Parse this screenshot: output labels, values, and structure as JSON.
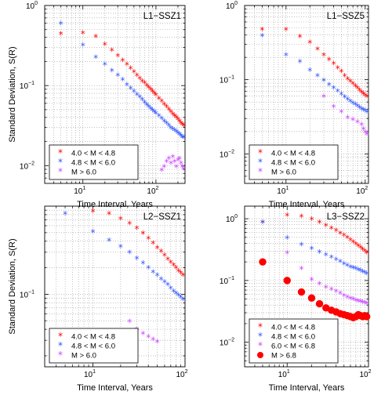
{
  "chart_data": [
    {
      "type": "scatter",
      "title": "L1−SSZ1",
      "xlabel": "Time Interval, Years",
      "ylabel": "Standard Deviation, S(R)",
      "xscale": "log",
      "yscale": "log",
      "xlim": [
        3,
        250
      ],
      "ylim": [
        0.006,
        1
      ],
      "grid": true,
      "legend_position": "bottom-left",
      "x_ticks": [
        {
          "v": 10,
          "label": "10",
          "exp": "1"
        },
        {
          "v": 100,
          "label": "10",
          "exp": "2"
        }
      ],
      "y_ticks": [
        {
          "v": 0.01,
          "label": "10",
          "exp": "−2"
        },
        {
          "v": 0.1,
          "label": "10",
          "exp": "−1"
        },
        {
          "v": 1,
          "label": "10",
          "exp": "0"
        }
      ],
      "series": [
        {
          "name": "4.0 < M < 4.8",
          "color": "#ff0000",
          "marker": "star",
          "x": [
            5,
            10,
            15,
            20,
            25,
            30,
            35,
            40,
            45,
            50,
            55,
            60,
            65,
            70,
            75,
            80,
            85,
            90,
            95,
            100,
            110,
            120,
            130,
            140,
            150,
            160,
            170,
            180,
            190,
            200,
            210,
            220,
            230,
            240
          ],
          "y": [
            0.43,
            0.44,
            0.4,
            0.32,
            0.27,
            0.23,
            0.2,
            0.18,
            0.16,
            0.145,
            0.13,
            0.12,
            0.11,
            0.105,
            0.098,
            0.092,
            0.087,
            0.082,
            0.078,
            0.074,
            0.067,
            0.062,
            0.057,
            0.053,
            0.049,
            0.046,
            0.043,
            0.041,
            0.039,
            0.037,
            0.035,
            0.033,
            0.032,
            0.031
          ]
        },
        {
          "name": "4.8 < M < 6.0",
          "color": "#3355ff",
          "marker": "star",
          "x": [
            5,
            10,
            15,
            20,
            25,
            30,
            35,
            40,
            45,
            50,
            55,
            60,
            65,
            70,
            75,
            80,
            85,
            90,
            95,
            100,
            110,
            120,
            130,
            140,
            150,
            160,
            170,
            180,
            190,
            200,
            210,
            220,
            230,
            240
          ],
          "y": [
            0.58,
            0.31,
            0.22,
            0.18,
            0.15,
            0.13,
            0.115,
            0.1,
            0.09,
            0.082,
            0.075,
            0.07,
            0.065,
            0.06,
            0.056,
            0.053,
            0.05,
            0.048,
            0.046,
            0.044,
            0.041,
            0.038,
            0.035,
            0.033,
            0.031,
            0.029,
            0.028,
            0.027,
            0.026,
            0.025,
            0.024,
            0.023,
            0.022,
            0.022
          ]
        },
        {
          "name": "M > 6.0",
          "color": "#cc44ff",
          "marker": "star",
          "x": [
            120,
            130,
            140,
            150,
            160,
            170,
            180,
            190,
            200,
            210,
            220,
            230,
            240
          ],
          "y": [
            0.0085,
            0.0095,
            0.011,
            0.012,
            0.0105,
            0.0125,
            0.011,
            0.0095,
            0.0115,
            0.012,
            0.0105,
            0.0095,
            0.0088
          ]
        }
      ]
    },
    {
      "type": "scatter",
      "title": "L1−SSZ5",
      "xlabel": "Time Interval, Years",
      "ylabel": "",
      "xscale": "log",
      "yscale": "log",
      "xlim": [
        3,
        110
      ],
      "ylim": [
        0.004,
        1
      ],
      "grid": true,
      "legend_position": "bottom-left",
      "x_ticks": [
        {
          "v": 10,
          "label": "10",
          "exp": "1"
        },
        {
          "v": 100,
          "label": "10",
          "exp": "2"
        }
      ],
      "y_ticks": [
        {
          "v": 0.01,
          "label": "10",
          "exp": "−2"
        },
        {
          "v": 0.1,
          "label": "10",
          "exp": "−1"
        },
        {
          "v": 1,
          "label": "10",
          "exp": "0"
        }
      ],
      "series": [
        {
          "name": "4.0 < M < 4.8",
          "color": "#ff0000",
          "marker": "star",
          "x": [
            5,
            10,
            15,
            20,
            25,
            30,
            35,
            40,
            45,
            50,
            55,
            60,
            65,
            70,
            75,
            80,
            85,
            90,
            95,
            100,
            105
          ],
          "y": [
            0.46,
            0.46,
            0.37,
            0.31,
            0.25,
            0.21,
            0.18,
            0.16,
            0.14,
            0.125,
            0.11,
            0.1,
            0.093,
            0.086,
            0.08,
            0.075,
            0.07,
            0.066,
            0.063,
            0.06,
            0.058
          ]
        },
        {
          "name": "4.8 < M < 6.0",
          "color": "#3355ff",
          "marker": "star",
          "x": [
            5,
            10,
            15,
            20,
            25,
            30,
            35,
            40,
            45,
            50,
            55,
            60,
            65,
            70,
            75,
            80,
            85,
            90,
            95,
            100,
            105
          ],
          "y": [
            0.38,
            0.21,
            0.17,
            0.13,
            0.11,
            0.095,
            0.083,
            0.075,
            0.068,
            0.062,
            0.057,
            0.053,
            0.05,
            0.047,
            0.045,
            0.043,
            0.041,
            0.039,
            0.038,
            0.037,
            0.036
          ]
        },
        {
          "name": "M > 6.0",
          "color": "#cc44ff",
          "marker": "star",
          "x": [
            30,
            40,
            50,
            60,
            70,
            80,
            90,
            95,
            100,
            105
          ],
          "y": [
            0.058,
            0.042,
            0.036,
            0.03,
            0.028,
            0.026,
            0.024,
            0.021,
            0.019,
            0.018
          ]
        }
      ]
    },
    {
      "type": "scatter",
      "title": "L2−SSZ1",
      "xlabel": "Time Interval, Years",
      "ylabel": "Standard Deviation, S(R)",
      "xscale": "log",
      "yscale": "log",
      "xlim": [
        3,
        100
      ],
      "ylim": [
        0.015,
        1
      ],
      "grid": true,
      "legend_position": "bottom-left",
      "x_ticks": [
        {
          "v": 10,
          "label": "10",
          "exp": "1"
        },
        {
          "v": 100,
          "label": "10",
          "exp": "2"
        }
      ],
      "y_ticks": [
        {
          "v": 0.1,
          "label": "10",
          "exp": "−1"
        }
      ],
      "series": [
        {
          "name": "4.0 < M < 4.8",
          "color": "#ff0000",
          "marker": "star",
          "x": [
            10,
            15,
            20,
            25,
            30,
            35,
            40,
            45,
            50,
            55,
            60,
            65,
            70,
            75,
            80,
            85,
            90,
            95
          ],
          "y": [
            0.85,
            0.8,
            0.7,
            0.62,
            0.55,
            0.48,
            0.42,
            0.37,
            0.33,
            0.3,
            0.27,
            0.245,
            0.225,
            0.21,
            0.195,
            0.18,
            0.17,
            0.16
          ]
        },
        {
          "name": "4.8 < M < 6.0",
          "color": "#3355ff",
          "marker": "star",
          "x": [
            5,
            10,
            15,
            20,
            25,
            30,
            35,
            40,
            45,
            50,
            55,
            60,
            65,
            70,
            75,
            80,
            85,
            90,
            95
          ],
          "y": [
            0.8,
            0.5,
            0.4,
            0.34,
            0.29,
            0.25,
            0.22,
            0.195,
            0.175,
            0.16,
            0.145,
            0.135,
            0.125,
            0.115,
            0.105,
            0.1,
            0.095,
            0.09,
            0.085
          ]
        },
        {
          "name": "M > 6.0",
          "color": "#cc44ff",
          "marker": "star",
          "x": [
            25,
            30,
            35,
            40,
            45,
            50
          ],
          "y": [
            0.048,
            0.039,
            0.035,
            0.032,
            0.03,
            0.028
          ]
        }
      ]
    },
    {
      "type": "scatter",
      "title": "L3−SSZ2",
      "xlabel": "Time Interval, Years",
      "ylabel": "",
      "xscale": "log",
      "yscale": "log",
      "xlim": [
        3,
        100
      ],
      "ylim": [
        0.004,
        1.6
      ],
      "grid": true,
      "legend_position": "bottom-left",
      "x_ticks": [
        {
          "v": 10,
          "label": "10",
          "exp": "1"
        },
        {
          "v": 100,
          "label": "10",
          "exp": "2"
        }
      ],
      "y_ticks": [
        {
          "v": 0.01,
          "label": "10",
          "exp": "−2"
        },
        {
          "v": 0.1,
          "label": "10",
          "exp": "−1"
        },
        {
          "v": 1,
          "label": "10",
          "exp": "0"
        }
      ],
      "series": [
        {
          "name": "4.0 < M < 4.8",
          "color": "#ff0000",
          "marker": "star",
          "x": [
            5,
            10,
            15,
            20,
            25,
            30,
            35,
            40,
            45,
            50,
            55,
            60,
            65,
            70,
            75,
            80,
            85,
            90,
            95
          ],
          "y": [
            0.85,
            1.1,
            1.05,
            0.95,
            0.85,
            0.75,
            0.68,
            0.62,
            0.56,
            0.52,
            0.48,
            0.44,
            0.41,
            0.38,
            0.35,
            0.33,
            0.31,
            0.29,
            0.27
          ]
        },
        {
          "name": "4.8 < M < 6.0",
          "color": "#3355ff",
          "marker": "star",
          "x": [
            5,
            10,
            15,
            20,
            25,
            30,
            35,
            40,
            45,
            50,
            55,
            60,
            65,
            70,
            75,
            80,
            85,
            90,
            95
          ],
          "y": [
            0.85,
            0.47,
            0.37,
            0.32,
            0.28,
            0.25,
            0.23,
            0.21,
            0.195,
            0.18,
            0.17,
            0.16,
            0.155,
            0.15,
            0.145,
            0.14,
            0.135,
            0.13,
            0.125
          ]
        },
        {
          "name": "6.0 < M < 6.8",
          "color": "#cc44ff",
          "marker": "star",
          "x": [
            10,
            15,
            20,
            25,
            30,
            35,
            40,
            45,
            50,
            55,
            60,
            65,
            70,
            75,
            80,
            85,
            90,
            95
          ],
          "y": [
            0.27,
            0.15,
            0.1,
            0.085,
            0.075,
            0.07,
            0.065,
            0.06,
            0.055,
            0.052,
            0.05,
            0.048,
            0.046,
            0.045,
            0.044,
            0.043,
            0.042,
            0.041
          ]
        },
        {
          "name": "M > 6.8",
          "color": "#ff0000",
          "marker": "circle",
          "x": [
            5,
            10,
            15,
            20,
            25,
            30,
            35,
            40,
            45,
            50,
            55,
            60,
            65,
            70,
            75,
            80,
            85,
            90,
            95
          ],
          "y": [
            0.2,
            0.1,
            0.065,
            0.052,
            0.042,
            0.036,
            0.033,
            0.031,
            0.029,
            0.028,
            0.027,
            0.026,
            0.025,
            0.026,
            0.028,
            0.027,
            0.026,
            0.027,
            0.026
          ]
        }
      ]
    }
  ]
}
